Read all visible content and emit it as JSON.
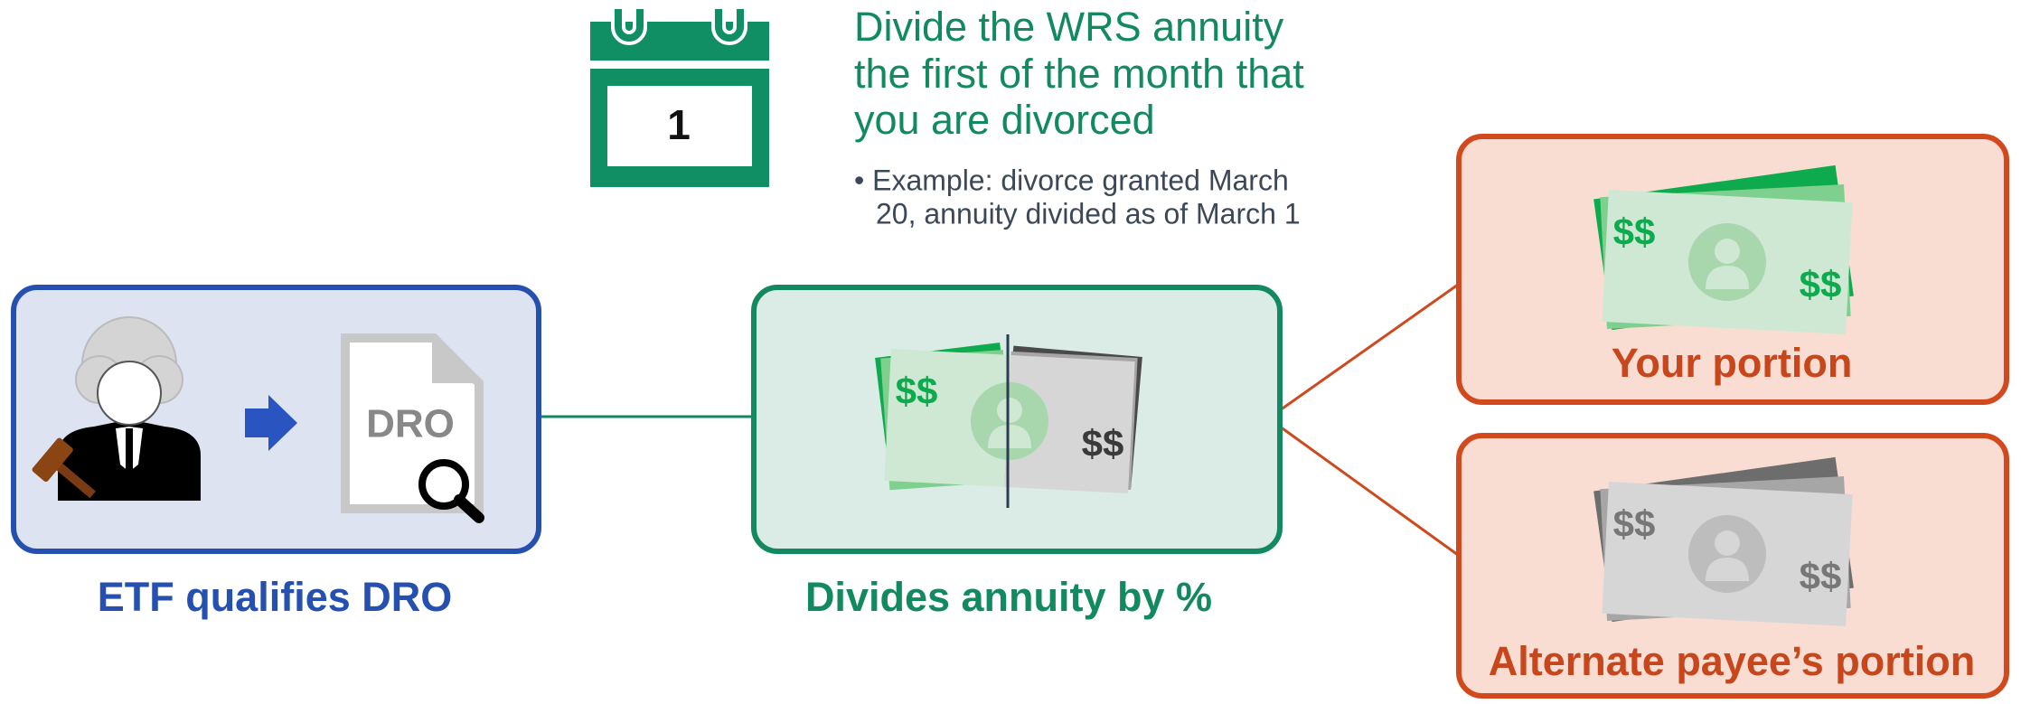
{
  "calendar": {
    "day": "1"
  },
  "heading": {
    "lines": [
      "Divide the WRS annuity",
      "the first of the month that",
      "you are divorced"
    ],
    "bullet_lines": [
      "• Example: divorce granted March",
      "20, annuity divided as of March 1"
    ]
  },
  "nodes": [
    {
      "label": "ETF qualifies DRO",
      "document_text": "DRO"
    },
    {
      "label": "Divides annuity by %",
      "bill_marks": [
        "$$",
        "$$"
      ]
    },
    {
      "label": "Your portion",
      "bill_marks": [
        "$$",
        "$$"
      ]
    },
    {
      "label": "Alternate payee’s portion",
      "bill_marks": [
        "$$",
        "$$"
      ]
    }
  ]
}
